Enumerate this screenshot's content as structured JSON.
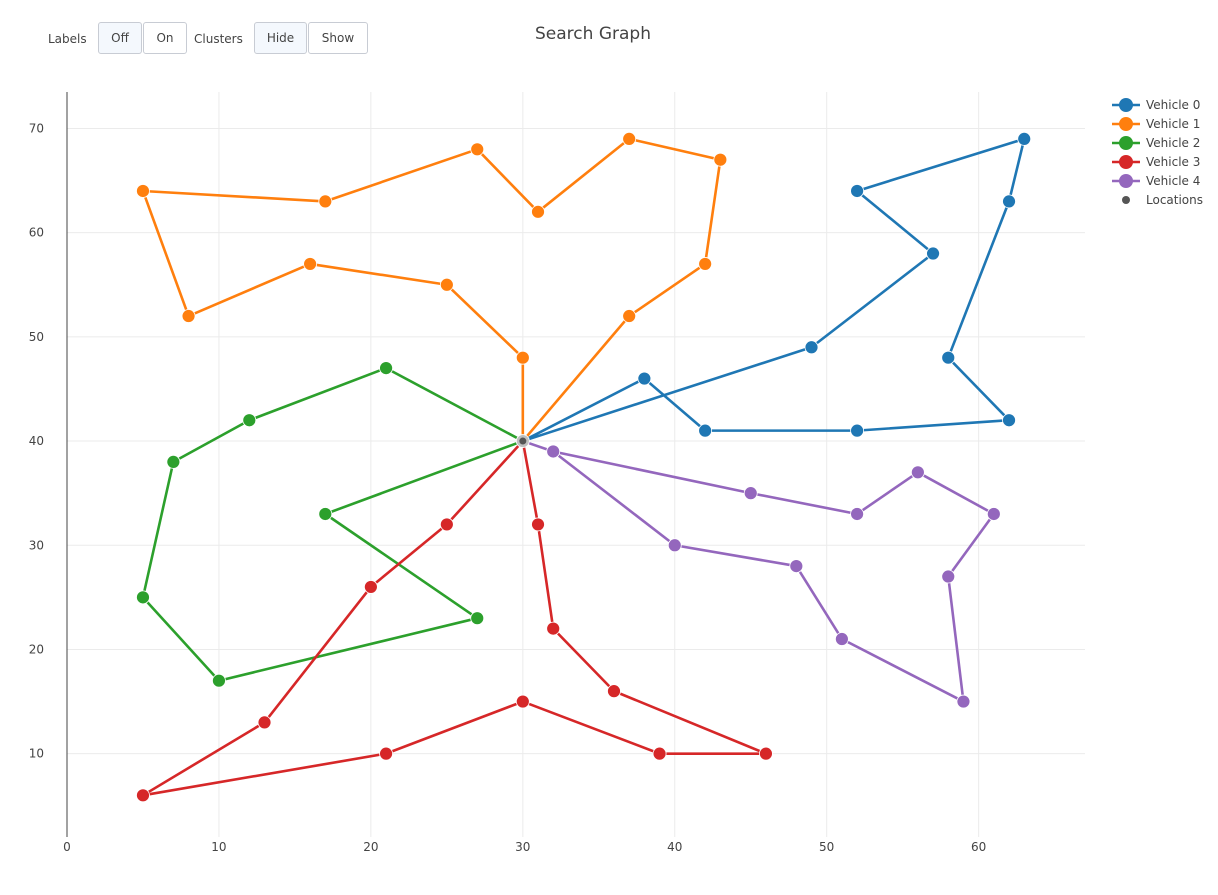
{
  "controls": {
    "labels_label": "Labels",
    "labels_off": "Off",
    "labels_on": "On",
    "clusters_label": "Clusters",
    "clusters_hide": "Hide",
    "clusters_show": "Show"
  },
  "chart_data": {
    "type": "line",
    "title": "Search Graph",
    "xlabel": "",
    "ylabel": "",
    "xlim": [
      0,
      67
    ],
    "ylim": [
      2,
      73.5
    ],
    "xticks": [
      0,
      10,
      20,
      30,
      40,
      50,
      60
    ],
    "yticks": [
      10,
      20,
      30,
      40,
      50,
      60,
      70
    ],
    "grid": true,
    "legend_position": "top-right",
    "depot": [
      30,
      40
    ],
    "series": [
      {
        "name": "Vehicle 0",
        "color": "#1f77b4",
        "points": [
          [
            30,
            40
          ],
          [
            38,
            46
          ],
          [
            42,
            41
          ],
          [
            52,
            41
          ],
          [
            62,
            42
          ],
          [
            58,
            48
          ],
          [
            62,
            63
          ],
          [
            63,
            69
          ],
          [
            52,
            64
          ],
          [
            57,
            58
          ],
          [
            49,
            49
          ],
          [
            30,
            40
          ]
        ]
      },
      {
        "name": "Vehicle 1",
        "color": "#ff7f0e",
        "points": [
          [
            30,
            40
          ],
          [
            30,
            48
          ],
          [
            25,
            55
          ],
          [
            16,
            57
          ],
          [
            8,
            52
          ],
          [
            5,
            64
          ],
          [
            17,
            63
          ],
          [
            27,
            68
          ],
          [
            31,
            62
          ],
          [
            37,
            69
          ],
          [
            43,
            67
          ],
          [
            42,
            57
          ],
          [
            37,
            52
          ],
          [
            30,
            40
          ]
        ]
      },
      {
        "name": "Vehicle 2",
        "color": "#2ca02c",
        "points": [
          [
            30,
            40
          ],
          [
            21,
            47
          ],
          [
            12,
            42
          ],
          [
            7,
            38
          ],
          [
            5,
            25
          ],
          [
            10,
            17
          ],
          [
            27,
            23
          ],
          [
            17,
            33
          ],
          [
            30,
            40
          ]
        ]
      },
      {
        "name": "Vehicle 3",
        "color": "#d62728",
        "points": [
          [
            30,
            40
          ],
          [
            31,
            32
          ],
          [
            32,
            22
          ],
          [
            36,
            16
          ],
          [
            46,
            10
          ],
          [
            39,
            10
          ],
          [
            30,
            15
          ],
          [
            21,
            10
          ],
          [
            5,
            6
          ],
          [
            13,
            13
          ],
          [
            20,
            26
          ],
          [
            25,
            32
          ],
          [
            30,
            40
          ]
        ]
      },
      {
        "name": "Vehicle 4",
        "color": "#9467bd",
        "points": [
          [
            30,
            40
          ],
          [
            32,
            39
          ],
          [
            45,
            35
          ],
          [
            52,
            33
          ],
          [
            56,
            37
          ],
          [
            61,
            33
          ],
          [
            58,
            27
          ],
          [
            59,
            15
          ],
          [
            51,
            21
          ],
          [
            48,
            28
          ],
          [
            40,
            30
          ],
          [
            32,
            39
          ],
          [
            30,
            40
          ]
        ]
      }
    ],
    "locations_label": "Locations",
    "locations_color": "#555555"
  }
}
